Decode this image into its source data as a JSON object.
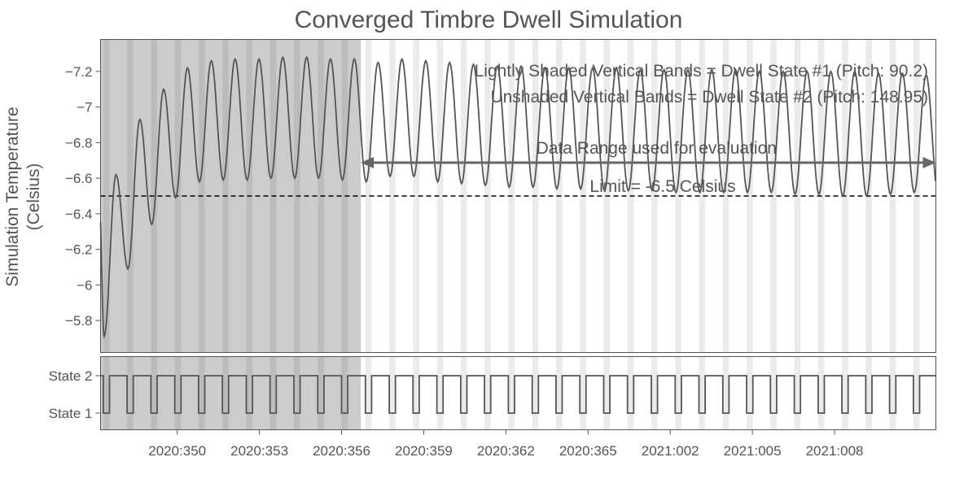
{
  "chart_data": {
    "type": "line",
    "title": "Converged Timbre Dwell Simulation",
    "ylabel_lines": [
      "Simulation Temperature",
      "(Celsius)"
    ],
    "xlabel": "",
    "x_axis": {
      "unit": "day_of_year",
      "range_days": [
        2020347.2,
        2021011.7
      ],
      "tick_labels": [
        "2020:350",
        "2020:353",
        "2020:356",
        "2020:359",
        "2020:362",
        "2020:365",
        "2021:002",
        "2021:005",
        "2021:008"
      ]
    },
    "y_axis": {
      "range": [
        -7.38,
        -5.62
      ],
      "ticks": [
        -5.8,
        -6.0,
        -6.2,
        -6.4,
        -6.6,
        -6.8,
        -7.0,
        -7.2
      ],
      "tick_labels": [
        "−5.8",
        "−6",
        "−6.2",
        "−6.4",
        "−6.6",
        "−6.8",
        "−7",
        "−7.2"
      ]
    },
    "limit": {
      "value": -6.5,
      "label": "Limit = -6.5 Celsius"
    },
    "annotations": {
      "line1": "Lightly Shaded Vertical Bands = Dwell State #1 (Pitch: 90.2)",
      "line2": "Unshaded Vertical Bands = Dwell State #2 (Pitch: 148.95)",
      "range_label": "Data Range used for evaluation"
    },
    "evaluation_range_start": "2020:356.7",
    "state_panel": {
      "tick_labels": [
        "State 2",
        "State 1"
      ],
      "cycle_days": 0.87,
      "state1_fraction": 0.26,
      "first_state1_start": "2020:347.3"
    },
    "series": [
      {
        "cycle_days": 0.87,
        "peaks": [
          -5.71,
          -6.09,
          -6.34,
          -6.49,
          -6.58,
          -6.59,
          -6.59,
          -6.6,
          -6.6,
          -6.6,
          -6.59,
          -6.58,
          -6.61,
          -6.61,
          -6.58,
          -6.57,
          -6.56,
          -6.55,
          -6.55,
          -6.54,
          -6.54,
          -6.53,
          -6.53,
          -6.53,
          -6.52,
          -6.52,
          -6.52,
          -6.52,
          -6.52,
          -6.51,
          -6.51,
          -6.5,
          -6.5,
          -6.51,
          -6.52,
          -6.51
        ],
        "troughs": [
          -6.62,
          -6.93,
          -7.1,
          -7.22,
          -7.26,
          -7.27,
          -7.27,
          -7.28,
          -7.28,
          -7.27,
          -7.27,
          -7.25,
          -7.27,
          -7.26,
          -7.25,
          -7.24,
          -7.23,
          -7.23,
          -7.22,
          -7.22,
          -7.22,
          -7.22,
          -7.21,
          -7.21,
          -7.21,
          -7.21,
          -7.21,
          -7.2,
          -7.2,
          -7.2,
          -7.2,
          -7.2,
          -7.19,
          -7.19,
          -7.18,
          -7.12
        ]
      }
    ]
  }
}
